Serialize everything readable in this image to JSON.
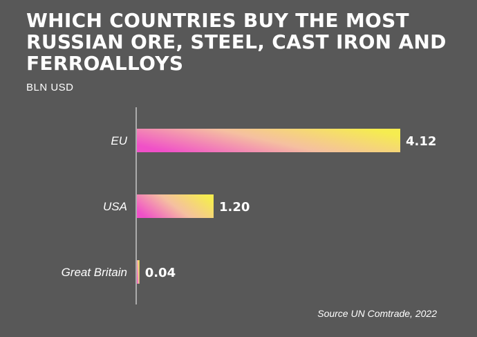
{
  "header": {
    "title": "WHICH COUNTRIES BUY THE MOST RUSSIAN ORE, STEEL, CAST IRON AND FERROALLOYS",
    "subtitle": "BLN USD"
  },
  "footer": {
    "source": "Source UN Comtrade, 2022"
  },
  "colors": {
    "background": "#585858",
    "bar_gradient_start": "#f050c8",
    "bar_gradient_mid": "#f5c0a0",
    "bar_gradient_end": "#f5ec50",
    "axis": "#ffffff",
    "text": "#ffffff"
  },
  "chart_data": {
    "type": "bar",
    "orientation": "horizontal",
    "title": "WHICH COUNTRIES BUY THE MOST RUSSIAN ORE, STEEL, CAST IRON AND FERROALLOYS",
    "subtitle": "BLN USD",
    "categories": [
      "EU",
      "USA",
      "Great Britain"
    ],
    "values": [
      4.12,
      1.2,
      0.04
    ],
    "value_labels": [
      "4.12",
      "1.20",
      "0.04"
    ],
    "xlim": [
      0,
      4.12
    ],
    "grid": false,
    "legend": "none"
  }
}
